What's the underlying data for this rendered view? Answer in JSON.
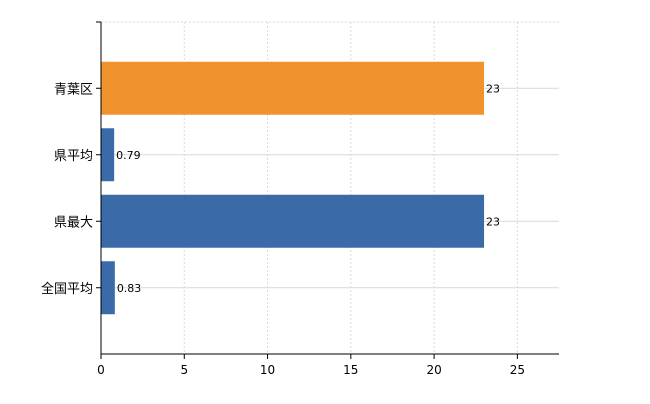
{
  "chart_data": {
    "type": "bar",
    "orientation": "horizontal",
    "categories": [
      "青葉区",
      "県平均",
      "県最大",
      "全国平均"
    ],
    "values": [
      23,
      0.79,
      23,
      0.83
    ],
    "data_labels": [
      "23",
      "0.79",
      "23",
      "0.83"
    ],
    "bar_colors": [
      "#f0922e",
      "#3a6aa8",
      "#3a6aa8",
      "#3a6aa8"
    ],
    "xlim": [
      0,
      27.5
    ],
    "xticks": [
      0,
      5,
      10,
      15,
      20,
      25
    ],
    "xtick_labels": [
      "0",
      "5",
      "10",
      "15",
      "20",
      "25"
    ],
    "title": "",
    "xlabel": "",
    "ylabel": "",
    "grid": true,
    "legend": "none"
  }
}
